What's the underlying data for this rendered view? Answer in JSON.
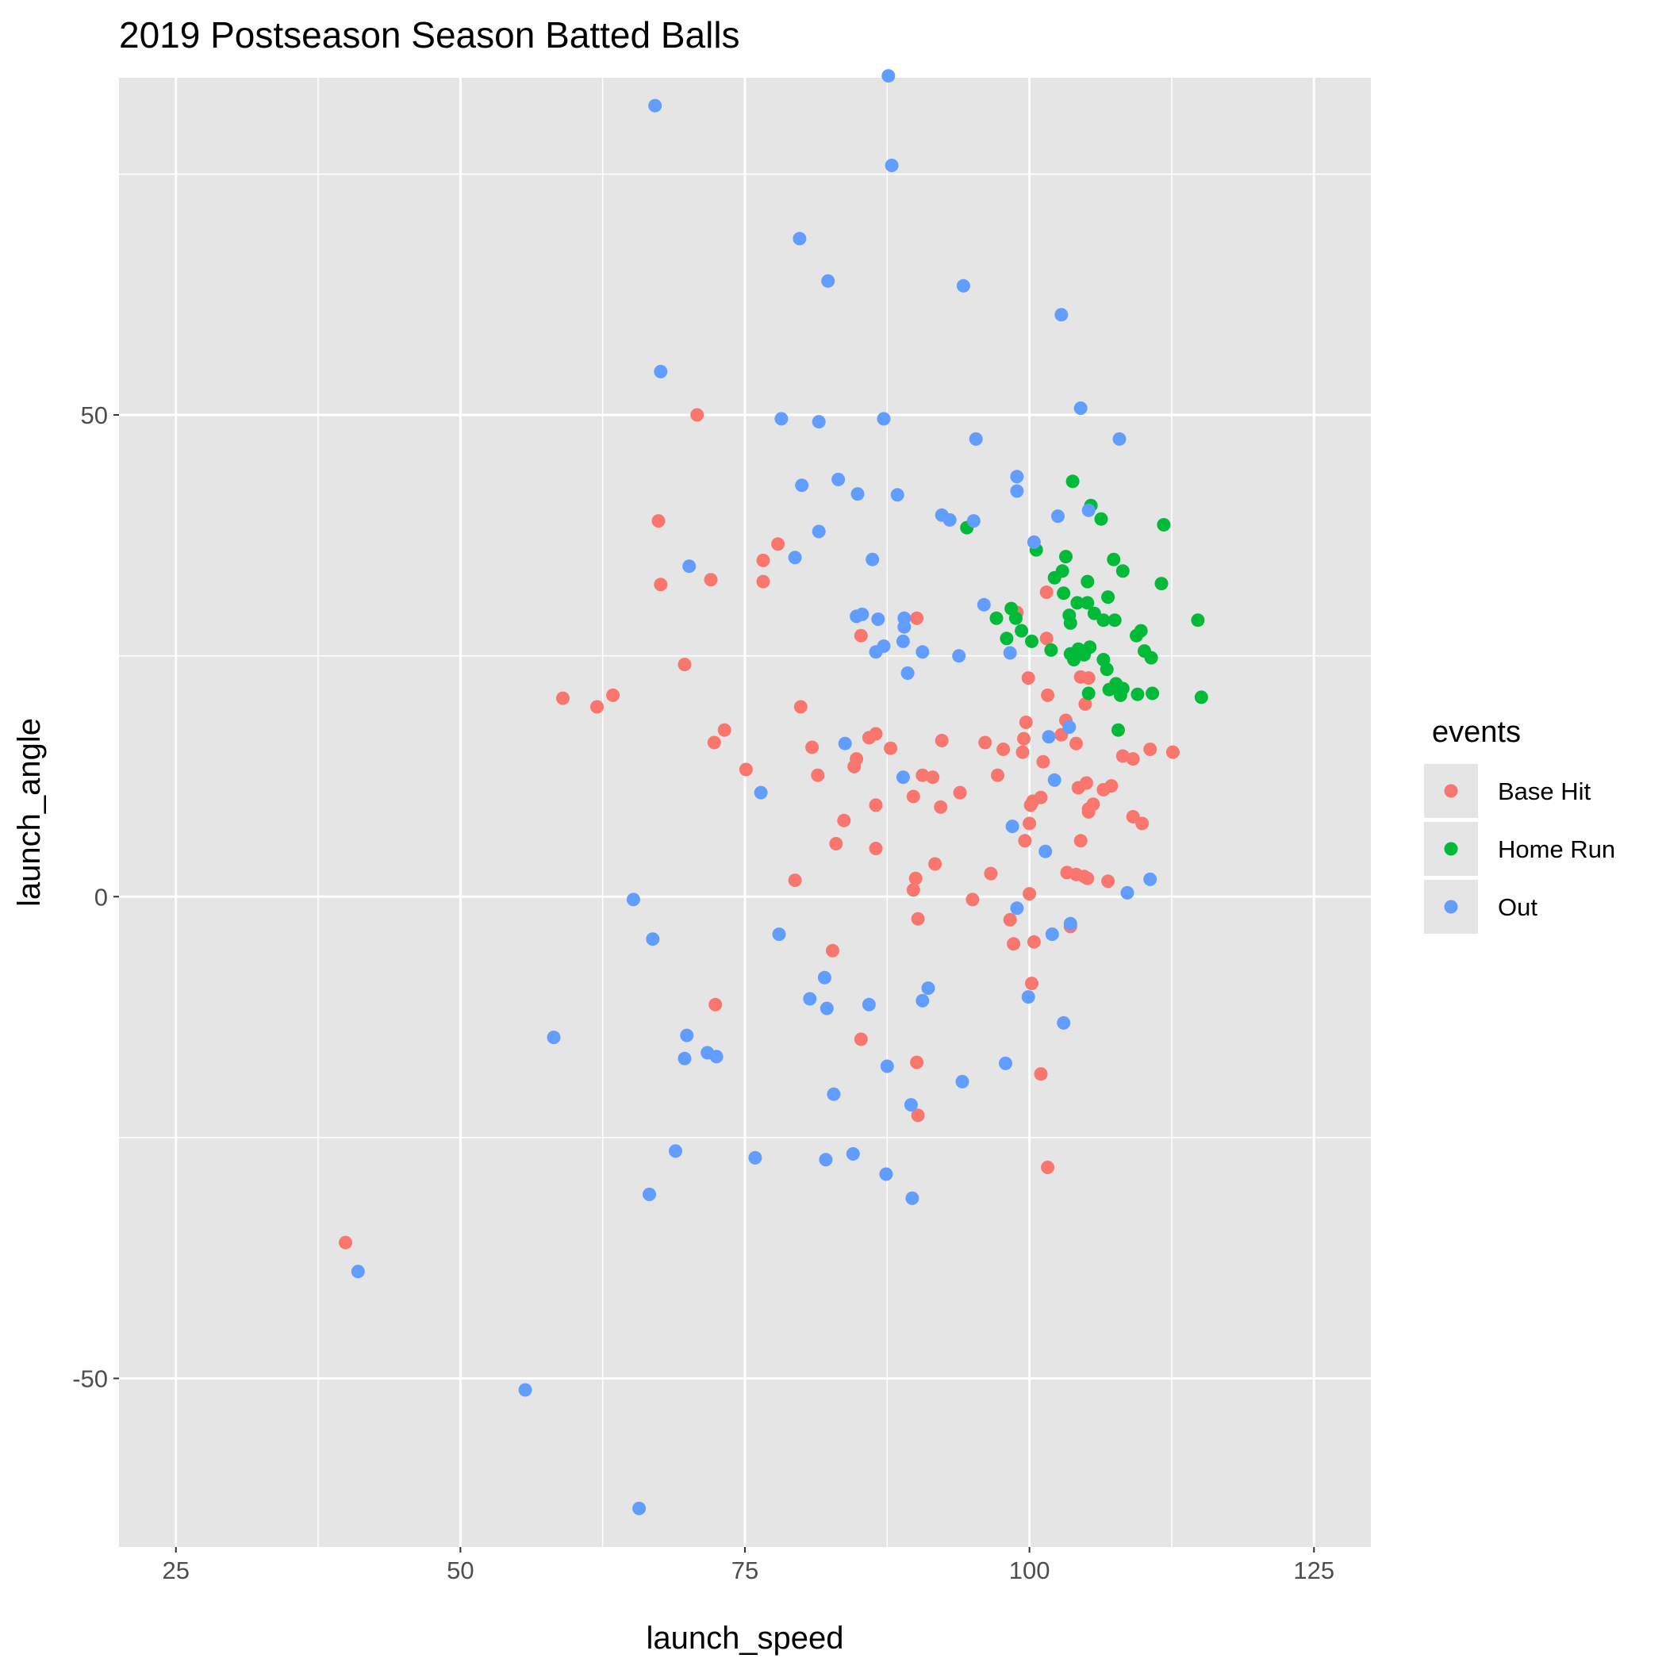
{
  "chart_data": {
    "type": "scatter",
    "title": "2019 Postseason Season Batted Balls",
    "xlabel": "launch_speed",
    "ylabel": "launch_angle",
    "xlim": [
      20,
      130
    ],
    "ylim": [
      -67.5,
      85
    ],
    "x_ticks": [
      25,
      50,
      75,
      100,
      125
    ],
    "x_tick_labels": [
      "25",
      "50",
      "75",
      "100",
      "125"
    ],
    "y_ticks": [
      -50,
      0,
      50
    ],
    "y_tick_labels": [
      "-50",
      "0",
      "50"
    ],
    "grid": true,
    "legend": {
      "title": "events",
      "position": "right"
    },
    "background_color": "#e5e5e5",
    "grid_color": "#ffffff",
    "series": [
      {
        "name": "Base Hit",
        "color": "#f8766d",
        "points": [
          [
            70.8,
            50.0
          ],
          [
            67.4,
            39.0
          ],
          [
            67.6,
            32.4
          ],
          [
            72.0,
            32.9
          ],
          [
            76.6,
            34.9
          ],
          [
            76.6,
            32.7
          ],
          [
            77.9,
            36.6
          ],
          [
            69.7,
            24.1
          ],
          [
            59.0,
            20.6
          ],
          [
            62.0,
            19.7
          ],
          [
            63.4,
            20.9
          ],
          [
            73.2,
            17.3
          ],
          [
            72.3,
            16.0
          ],
          [
            75.1,
            13.2
          ],
          [
            79.9,
            19.7
          ],
          [
            80.9,
            15.5
          ],
          [
            81.4,
            12.6
          ],
          [
            84.8,
            14.3
          ],
          [
            84.6,
            13.5
          ],
          [
            85.9,
            16.5
          ],
          [
            86.5,
            16.9
          ],
          [
            87.8,
            15.4
          ],
          [
            85.2,
            27.1
          ],
          [
            90.1,
            28.9
          ],
          [
            92.3,
            16.2
          ],
          [
            90.6,
            12.6
          ],
          [
            91.5,
            12.4
          ],
          [
            89.8,
            10.4
          ],
          [
            92.2,
            9.3
          ],
          [
            93.9,
            10.8
          ],
          [
            86.5,
            9.5
          ],
          [
            83.7,
            7.9
          ],
          [
            83.0,
            5.5
          ],
          [
            86.5,
            5.0
          ],
          [
            79.4,
            1.7
          ],
          [
            90.0,
            1.9
          ],
          [
            89.8,
            0.7
          ],
          [
            91.7,
            3.4
          ],
          [
            90.2,
            -2.3
          ],
          [
            95.0,
            -0.3
          ],
          [
            96.6,
            2.4
          ],
          [
            96.1,
            16.0
          ],
          [
            97.2,
            12.6
          ],
          [
            97.7,
            15.3
          ],
          [
            98.3,
            -2.4
          ],
          [
            98.6,
            -4.9
          ],
          [
            99.4,
            15.0
          ],
          [
            99.5,
            16.4
          ],
          [
            99.7,
            18.1
          ],
          [
            99.9,
            22.7
          ],
          [
            100.1,
            9.5
          ],
          [
            100.3,
            9.9
          ],
          [
            101.0,
            10.3
          ],
          [
            100.0,
            7.6
          ],
          [
            99.6,
            5.8
          ],
          [
            100.0,
            0.3
          ],
          [
            100.4,
            -4.7
          ],
          [
            100.2,
            -9.0
          ],
          [
            101.0,
            -18.4
          ],
          [
            101.6,
            -28.1
          ],
          [
            101.2,
            14.0
          ],
          [
            101.6,
            20.9
          ],
          [
            101.5,
            31.6
          ],
          [
            98.9,
            29.5
          ],
          [
            101.5,
            26.8
          ],
          [
            103.2,
            18.3
          ],
          [
            102.8,
            16.8
          ],
          [
            103.3,
            2.5
          ],
          [
            104.1,
            2.3
          ],
          [
            104.8,
            2.1
          ],
          [
            105.1,
            1.9
          ],
          [
            103.6,
            -3.1
          ],
          [
            104.1,
            15.9
          ],
          [
            104.5,
            22.8
          ],
          [
            104.9,
            20.0
          ],
          [
            105.2,
            22.7
          ],
          [
            104.3,
            11.3
          ],
          [
            105.0,
            11.8
          ],
          [
            105.2,
            9.1
          ],
          [
            105.6,
            9.6
          ],
          [
            105.2,
            8.8
          ],
          [
            104.5,
            5.8
          ],
          [
            106.5,
            11.1
          ],
          [
            107.2,
            11.5
          ],
          [
            106.9,
            1.6
          ],
          [
            108.2,
            14.6
          ],
          [
            109.1,
            14.3
          ],
          [
            110.6,
            15.3
          ],
          [
            112.6,
            15.0
          ],
          [
            109.1,
            8.3
          ],
          [
            109.9,
            7.6
          ],
          [
            85.2,
            -14.8
          ],
          [
            82.7,
            -5.6
          ],
          [
            72.4,
            -11.2
          ],
          [
            90.1,
            -17.2
          ],
          [
            90.2,
            -22.7
          ],
          [
            39.9,
            -35.9
          ]
        ]
      },
      {
        "name": "Home Run",
        "color": "#00ba38",
        "points": [
          [
            94.5,
            38.3
          ],
          [
            100.6,
            36.0
          ],
          [
            103.8,
            43.1
          ],
          [
            105.4,
            40.6
          ],
          [
            106.3,
            39.2
          ],
          [
            111.8,
            38.6
          ],
          [
            103.2,
            35.3
          ],
          [
            102.9,
            33.8
          ],
          [
            102.2,
            33.1
          ],
          [
            105.1,
            32.7
          ],
          [
            107.4,
            35.0
          ],
          [
            108.2,
            33.8
          ],
          [
            111.6,
            32.5
          ],
          [
            103.0,
            31.5
          ],
          [
            104.2,
            30.5
          ],
          [
            105.1,
            30.5
          ],
          [
            106.9,
            31.1
          ],
          [
            97.1,
            28.9
          ],
          [
            98.4,
            29.9
          ],
          [
            98.8,
            28.9
          ],
          [
            99.3,
            27.6
          ],
          [
            98.0,
            26.8
          ],
          [
            100.2,
            26.5
          ],
          [
            101.9,
            25.6
          ],
          [
            103.5,
            29.2
          ],
          [
            103.6,
            28.4
          ],
          [
            105.7,
            29.4
          ],
          [
            106.5,
            28.7
          ],
          [
            107.5,
            28.7
          ],
          [
            104.3,
            25.7
          ],
          [
            103.6,
            25.2
          ],
          [
            103.9,
            24.6
          ],
          [
            105.3,
            25.9
          ],
          [
            104.8,
            25.1
          ],
          [
            106.5,
            24.6
          ],
          [
            106.8,
            23.6
          ],
          [
            109.4,
            27.1
          ],
          [
            109.8,
            27.6
          ],
          [
            110.1,
            25.5
          ],
          [
            110.7,
            24.8
          ],
          [
            114.8,
            28.7
          ],
          [
            105.2,
            21.1
          ],
          [
            107.0,
            21.5
          ],
          [
            107.6,
            22.1
          ],
          [
            108.2,
            21.6
          ],
          [
            108.0,
            20.9
          ],
          [
            109.5,
            21.0
          ],
          [
            110.8,
            21.1
          ],
          [
            115.1,
            20.7
          ],
          [
            107.8,
            17.3
          ]
        ]
      },
      {
        "name": "Out",
        "color": "#619cff",
        "points": [
          [
            67.1,
            82.1
          ],
          [
            87.6,
            85.2
          ],
          [
            87.9,
            75.9
          ],
          [
            79.8,
            68.3
          ],
          [
            82.3,
            63.9
          ],
          [
            94.2,
            63.4
          ],
          [
            102.8,
            60.4
          ],
          [
            67.6,
            54.5
          ],
          [
            78.2,
            49.6
          ],
          [
            81.5,
            49.3
          ],
          [
            87.2,
            49.6
          ],
          [
            104.5,
            50.7
          ],
          [
            95.3,
            47.5
          ],
          [
            107.9,
            47.5
          ],
          [
            80.0,
            42.7
          ],
          [
            83.2,
            43.3
          ],
          [
            84.9,
            41.8
          ],
          [
            88.4,
            41.7
          ],
          [
            98.9,
            43.6
          ],
          [
            98.9,
            42.1
          ],
          [
            92.3,
            39.6
          ],
          [
            93.0,
            39.1
          ],
          [
            95.1,
            39.0
          ],
          [
            102.5,
            39.5
          ],
          [
            105.2,
            40.1
          ],
          [
            100.4,
            36.8
          ],
          [
            81.5,
            37.9
          ],
          [
            79.4,
            35.2
          ],
          [
            70.1,
            34.3
          ],
          [
            86.2,
            35.0
          ],
          [
            84.8,
            29.1
          ],
          [
            85.3,
            29.3
          ],
          [
            86.7,
            28.8
          ],
          [
            89.0,
            28.9
          ],
          [
            89.0,
            28.0
          ],
          [
            96.0,
            30.3
          ],
          [
            88.9,
            26.5
          ],
          [
            87.2,
            26.0
          ],
          [
            86.5,
            25.4
          ],
          [
            90.6,
            25.4
          ],
          [
            93.8,
            25.0
          ],
          [
            98.3,
            25.3
          ],
          [
            89.3,
            23.2
          ],
          [
            83.8,
            15.9
          ],
          [
            76.4,
            10.8
          ],
          [
            88.9,
            12.4
          ],
          [
            101.7,
            16.6
          ],
          [
            102.2,
            12.1
          ],
          [
            103.5,
            17.6
          ],
          [
            98.5,
            7.3
          ],
          [
            101.4,
            4.7
          ],
          [
            65.2,
            -0.3
          ],
          [
            66.9,
            -4.4
          ],
          [
            98.9,
            -1.2
          ],
          [
            102.0,
            -3.9
          ],
          [
            103.6,
            -2.8
          ],
          [
            108.6,
            0.4
          ],
          [
            110.6,
            1.8
          ],
          [
            78.0,
            -3.9
          ],
          [
            82.0,
            -8.4
          ],
          [
            80.7,
            -10.6
          ],
          [
            82.2,
            -11.6
          ],
          [
            85.9,
            -11.2
          ],
          [
            91.1,
            -9.5
          ],
          [
            90.6,
            -10.8
          ],
          [
            99.9,
            -10.4
          ],
          [
            103.0,
            -13.1
          ],
          [
            58.2,
            -14.6
          ],
          [
            69.9,
            -14.4
          ],
          [
            69.7,
            -16.8
          ],
          [
            71.7,
            -16.2
          ],
          [
            72.5,
            -16.6
          ],
          [
            87.5,
            -17.6
          ],
          [
            94.1,
            -19.2
          ],
          [
            97.9,
            -17.3
          ],
          [
            82.8,
            -20.5
          ],
          [
            89.6,
            -21.6
          ],
          [
            68.9,
            -26.4
          ],
          [
            75.9,
            -27.1
          ],
          [
            82.1,
            -27.3
          ],
          [
            84.5,
            -26.7
          ],
          [
            87.4,
            -28.8
          ],
          [
            66.6,
            -30.9
          ],
          [
            89.7,
            -31.3
          ],
          [
            41.0,
            -38.9
          ],
          [
            55.7,
            -51.2
          ],
          [
            65.7,
            -63.5
          ]
        ]
      }
    ]
  }
}
